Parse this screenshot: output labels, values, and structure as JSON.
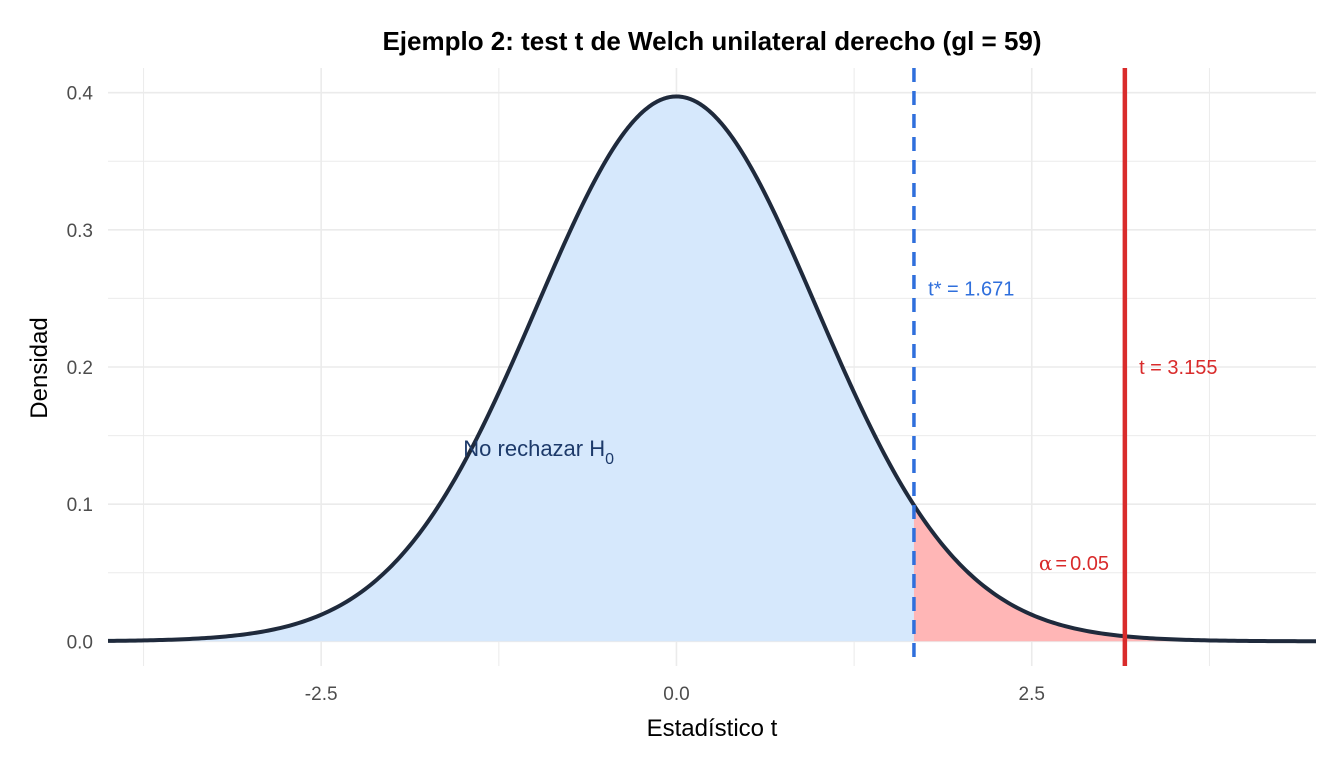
{
  "chart_data": {
    "type": "area",
    "title": "Ejemplo 2: test t de Welch unilateral derecho (gl = 59)",
    "xlabel": "Estadístico t",
    "ylabel": "Densidad",
    "df": 59,
    "xlim": [
      -4.0,
      4.5
    ],
    "ylim": [
      0.0,
      0.4
    ],
    "x_ticks": [
      -2.5,
      0.0,
      2.5
    ],
    "x_tick_labels": [
      "-2.5",
      "0.0",
      "2.5"
    ],
    "y_ticks": [
      0.0,
      0.1,
      0.2,
      0.3,
      0.4
    ],
    "y_tick_labels": [
      "0.0",
      "0.1",
      "0.2",
      "0.3",
      "0.4"
    ],
    "grid": true,
    "critical_value": 1.671,
    "observed_t": 3.155,
    "annotations": {
      "critical": "t* = 1.671",
      "observed": "t = 3.155",
      "no_reject": "No rechazar H",
      "no_reject_sub": "0",
      "alpha_symbol": "α",
      "alpha_eq": "=",
      "alpha_value": "0.05"
    },
    "colors": {
      "curve": "#1f2a3c",
      "accept_fill": "#d6e8fc",
      "reject_fill": "#ffb6b6",
      "critical_line": "#2f6fdc",
      "observed_line": "#d92b2b",
      "grid": "#ebebeb",
      "no_reject_text": "#1d3a6a"
    }
  }
}
